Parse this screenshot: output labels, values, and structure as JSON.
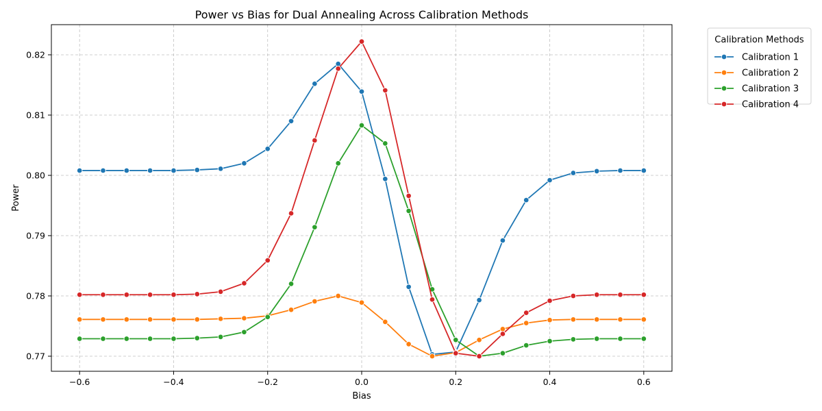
{
  "chart_data": {
    "type": "line",
    "title": "Power vs Bias for Dual Annealing Across Calibration Methods",
    "xlabel": "Bias",
    "ylabel": "Power",
    "xlim": [
      -0.66,
      0.66
    ],
    "ylim": [
      0.7675,
      0.825
    ],
    "xticks": [
      -0.6,
      -0.4,
      -0.2,
      0.0,
      0.2,
      0.4,
      0.6
    ],
    "xtick_labels": [
      "−0.6",
      "−0.4",
      "−0.2",
      "0.0",
      "0.2",
      "0.4",
      "0.6"
    ],
    "yticks": [
      0.77,
      0.78,
      0.79,
      0.8,
      0.81,
      0.82
    ],
    "ytick_labels": [
      "0.77",
      "0.78",
      "0.79",
      "0.80",
      "0.81",
      "0.82"
    ],
    "grid": true,
    "legend": {
      "title": "Calibration Methods",
      "placement": "outside-top-right"
    },
    "x": [
      -0.6,
      -0.55,
      -0.5,
      -0.45,
      -0.4,
      -0.35,
      -0.3,
      -0.25,
      -0.2,
      -0.15,
      -0.1,
      -0.05,
      0.0,
      0.05,
      0.1,
      0.15,
      0.2,
      0.25,
      0.3,
      0.35,
      0.4,
      0.45,
      0.5,
      0.55,
      0.6
    ],
    "series": [
      {
        "name": "Calibration 1",
        "color": "#1f77b4",
        "values": [
          0.8008,
          0.8008,
          0.8008,
          0.8008,
          0.8008,
          0.8009,
          0.8011,
          0.802,
          0.8044,
          0.809,
          0.8152,
          0.8185,
          0.8139,
          0.7994,
          0.7815,
          0.7703,
          0.7707,
          0.7793,
          0.7892,
          0.7959,
          0.7992,
          0.8004,
          0.8007,
          0.8008,
          0.8008
        ]
      },
      {
        "name": "Calibration 2",
        "color": "#ff7f0e",
        "values": [
          0.7761,
          0.7761,
          0.7761,
          0.7761,
          0.7761,
          0.7761,
          0.7762,
          0.7763,
          0.7767,
          0.7777,
          0.7791,
          0.78,
          0.7789,
          0.7757,
          0.772,
          0.77,
          0.7706,
          0.7727,
          0.7745,
          0.7755,
          0.776,
          0.7761,
          0.7761,
          0.7761,
          0.7761
        ]
      },
      {
        "name": "Calibration 3",
        "color": "#2ca02c",
        "values": [
          0.7729,
          0.7729,
          0.7729,
          0.7729,
          0.7729,
          0.773,
          0.7732,
          0.774,
          0.7765,
          0.782,
          0.7914,
          0.802,
          0.8083,
          0.8053,
          0.7941,
          0.7811,
          0.7727,
          0.77,
          0.7705,
          0.7718,
          0.7725,
          0.7728,
          0.7729,
          0.7729,
          0.7729
        ]
      },
      {
        "name": "Calibration 4",
        "color": "#d62728",
        "values": [
          0.7802,
          0.7802,
          0.7802,
          0.7802,
          0.7802,
          0.7803,
          0.7807,
          0.7821,
          0.7859,
          0.7937,
          0.8058,
          0.8177,
          0.8222,
          0.8141,
          0.7966,
          0.7794,
          0.7705,
          0.77,
          0.7737,
          0.7772,
          0.7792,
          0.78,
          0.7802,
          0.7802,
          0.7802
        ]
      }
    ]
  }
}
